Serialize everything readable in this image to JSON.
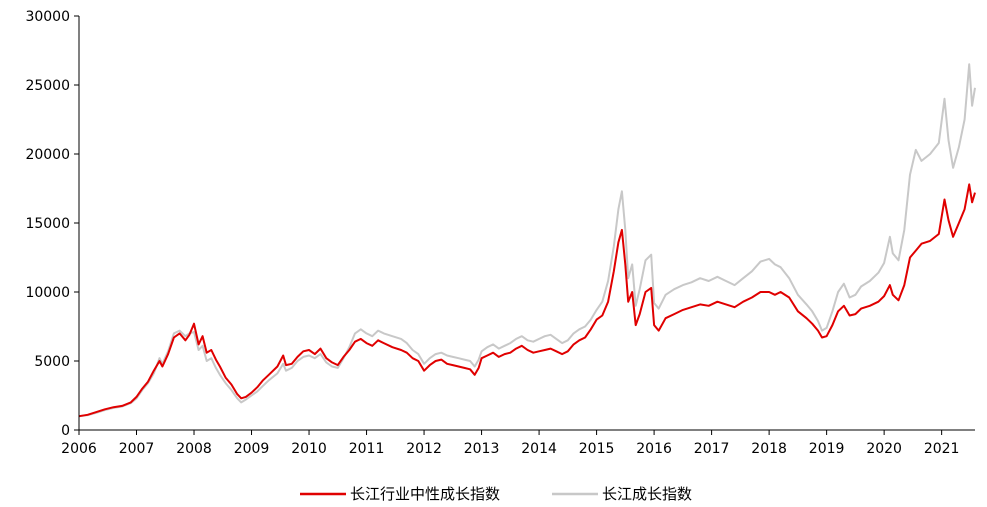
{
  "chart_data": {
    "type": "line",
    "title": "",
    "xlabel": "",
    "ylabel": "",
    "xlim": [
      2006,
      2021.58
    ],
    "ylim": [
      0,
      30000
    ],
    "x_ticks": [
      "2006",
      "2007",
      "2008",
      "2009",
      "2010",
      "2011",
      "2012",
      "2013",
      "2014",
      "2015",
      "2016",
      "2017",
      "2018",
      "2019",
      "2020",
      "2021"
    ],
    "y_ticks": [
      "0",
      "5000",
      "10000",
      "15000",
      "20000",
      "25000",
      "30000"
    ],
    "grid": false,
    "legend_position": "bottom",
    "series": [
      {
        "name": "长江行业中性成长指数",
        "color": "#e00000",
        "points": [
          [
            2006.0,
            1000
          ],
          [
            2006.15,
            1100
          ],
          [
            2006.3,
            1300
          ],
          [
            2006.45,
            1500
          ],
          [
            2006.6,
            1650
          ],
          [
            2006.75,
            1750
          ],
          [
            2006.9,
            2000
          ],
          [
            2007.0,
            2400
          ],
          [
            2007.1,
            3000
          ],
          [
            2007.2,
            3500
          ],
          [
            2007.3,
            4300
          ],
          [
            2007.4,
            5000
          ],
          [
            2007.45,
            4600
          ],
          [
            2007.55,
            5500
          ],
          [
            2007.65,
            6700
          ],
          [
            2007.75,
            7000
          ],
          [
            2007.85,
            6500
          ],
          [
            2007.92,
            6900
          ],
          [
            2008.0,
            7700
          ],
          [
            2008.08,
            6200
          ],
          [
            2008.15,
            6800
          ],
          [
            2008.22,
            5600
          ],
          [
            2008.3,
            5800
          ],
          [
            2008.38,
            5100
          ],
          [
            2008.45,
            4600
          ],
          [
            2008.55,
            3800
          ],
          [
            2008.65,
            3300
          ],
          [
            2008.75,
            2600
          ],
          [
            2008.82,
            2300
          ],
          [
            2008.9,
            2400
          ],
          [
            2009.0,
            2700
          ],
          [
            2009.1,
            3100
          ],
          [
            2009.2,
            3600
          ],
          [
            2009.3,
            4000
          ],
          [
            2009.45,
            4600
          ],
          [
            2009.55,
            5400
          ],
          [
            2009.6,
            4700
          ],
          [
            2009.7,
            4800
          ],
          [
            2009.8,
            5300
          ],
          [
            2009.9,
            5700
          ],
          [
            2010.0,
            5800
          ],
          [
            2010.1,
            5500
          ],
          [
            2010.2,
            5900
          ],
          [
            2010.3,
            5200
          ],
          [
            2010.4,
            4900
          ],
          [
            2010.5,
            4700
          ],
          [
            2010.6,
            5300
          ],
          [
            2010.7,
            5800
          ],
          [
            2010.8,
            6400
          ],
          [
            2010.9,
            6600
          ],
          [
            2011.0,
            6300
          ],
          [
            2011.1,
            6100
          ],
          [
            2011.2,
            6500
          ],
          [
            2011.3,
            6300
          ],
          [
            2011.45,
            6000
          ],
          [
            2011.6,
            5800
          ],
          [
            2011.7,
            5600
          ],
          [
            2011.8,
            5200
          ],
          [
            2011.9,
            5000
          ],
          [
            2012.0,
            4300
          ],
          [
            2012.1,
            4700
          ],
          [
            2012.2,
            5000
          ],
          [
            2012.3,
            5100
          ],
          [
            2012.4,
            4800
          ],
          [
            2012.5,
            4700
          ],
          [
            2012.6,
            4600
          ],
          [
            2012.7,
            4500
          ],
          [
            2012.8,
            4400
          ],
          [
            2012.88,
            4000
          ],
          [
            2012.95,
            4500
          ],
          [
            2013.0,
            5200
          ],
          [
            2013.1,
            5400
          ],
          [
            2013.2,
            5600
          ],
          [
            2013.3,
            5300
          ],
          [
            2013.4,
            5500
          ],
          [
            2013.5,
            5600
          ],
          [
            2013.6,
            5900
          ],
          [
            2013.7,
            6100
          ],
          [
            2013.8,
            5800
          ],
          [
            2013.9,
            5600
          ],
          [
            2014.0,
            5700
          ],
          [
            2014.1,
            5800
          ],
          [
            2014.2,
            5900
          ],
          [
            2014.3,
            5700
          ],
          [
            2014.4,
            5500
          ],
          [
            2014.5,
            5700
          ],
          [
            2014.6,
            6200
          ],
          [
            2014.7,
            6500
          ],
          [
            2014.8,
            6700
          ],
          [
            2014.9,
            7300
          ],
          [
            2015.0,
            8000
          ],
          [
            2015.1,
            8300
          ],
          [
            2015.2,
            9300
          ],
          [
            2015.3,
            11500
          ],
          [
            2015.38,
            13600
          ],
          [
            2015.44,
            14500
          ],
          [
            2015.5,
            12000
          ],
          [
            2015.55,
            9300
          ],
          [
            2015.62,
            10000
          ],
          [
            2015.68,
            7600
          ],
          [
            2015.75,
            8400
          ],
          [
            2015.85,
            10000
          ],
          [
            2015.95,
            10300
          ],
          [
            2016.0,
            7600
          ],
          [
            2016.08,
            7200
          ],
          [
            2016.2,
            8100
          ],
          [
            2016.35,
            8400
          ],
          [
            2016.5,
            8700
          ],
          [
            2016.65,
            8900
          ],
          [
            2016.8,
            9100
          ],
          [
            2016.95,
            9000
          ],
          [
            2017.1,
            9300
          ],
          [
            2017.25,
            9100
          ],
          [
            2017.4,
            8900
          ],
          [
            2017.55,
            9300
          ],
          [
            2017.7,
            9600
          ],
          [
            2017.85,
            10000
          ],
          [
            2018.0,
            10000
          ],
          [
            2018.1,
            9800
          ],
          [
            2018.2,
            10000
          ],
          [
            2018.35,
            9600
          ],
          [
            2018.5,
            8600
          ],
          [
            2018.65,
            8100
          ],
          [
            2018.75,
            7700
          ],
          [
            2018.85,
            7200
          ],
          [
            2018.92,
            6700
          ],
          [
            2019.0,
            6800
          ],
          [
            2019.1,
            7600
          ],
          [
            2019.2,
            8600
          ],
          [
            2019.3,
            9000
          ],
          [
            2019.4,
            8300
          ],
          [
            2019.5,
            8400
          ],
          [
            2019.6,
            8800
          ],
          [
            2019.75,
            9000
          ],
          [
            2019.9,
            9300
          ],
          [
            2020.0,
            9700
          ],
          [
            2020.1,
            10500
          ],
          [
            2020.15,
            9800
          ],
          [
            2020.25,
            9400
          ],
          [
            2020.35,
            10500
          ],
          [
            2020.45,
            12500
          ],
          [
            2020.55,
            13000
          ],
          [
            2020.65,
            13500
          ],
          [
            2020.8,
            13700
          ],
          [
            2020.95,
            14200
          ],
          [
            2021.05,
            16700
          ],
          [
            2021.12,
            15200
          ],
          [
            2021.2,
            14000
          ],
          [
            2021.3,
            15000
          ],
          [
            2021.4,
            16000
          ],
          [
            2021.48,
            17800
          ],
          [
            2021.53,
            16500
          ],
          [
            2021.58,
            17200
          ]
        ]
      },
      {
        "name": "长江成长指数",
        "color": "#c8c8c8",
        "points": [
          [
            2006.0,
            1000
          ],
          [
            2006.15,
            1080
          ],
          [
            2006.3,
            1250
          ],
          [
            2006.45,
            1450
          ],
          [
            2006.6,
            1600
          ],
          [
            2006.75,
            1700
          ],
          [
            2006.9,
            1950
          ],
          [
            2007.0,
            2300
          ],
          [
            2007.1,
            2900
          ],
          [
            2007.2,
            3400
          ],
          [
            2007.3,
            4100
          ],
          [
            2007.4,
            5200
          ],
          [
            2007.45,
            4800
          ],
          [
            2007.55,
            5700
          ],
          [
            2007.65,
            7000
          ],
          [
            2007.75,
            7200
          ],
          [
            2007.85,
            6800
          ],
          [
            2007.92,
            7000
          ],
          [
            2008.0,
            7100
          ],
          [
            2008.08,
            5800
          ],
          [
            2008.15,
            6100
          ],
          [
            2008.22,
            5000
          ],
          [
            2008.3,
            5200
          ],
          [
            2008.38,
            4500
          ],
          [
            2008.45,
            4000
          ],
          [
            2008.55,
            3400
          ],
          [
            2008.65,
            2900
          ],
          [
            2008.75,
            2300
          ],
          [
            2008.82,
            2000
          ],
          [
            2008.9,
            2200
          ],
          [
            2009.0,
            2500
          ],
          [
            2009.1,
            2800
          ],
          [
            2009.2,
            3200
          ],
          [
            2009.3,
            3600
          ],
          [
            2009.45,
            4100
          ],
          [
            2009.55,
            4800
          ],
          [
            2009.6,
            4300
          ],
          [
            2009.7,
            4500
          ],
          [
            2009.8,
            5000
          ],
          [
            2009.9,
            5300
          ],
          [
            2010.0,
            5400
          ],
          [
            2010.1,
            5200
          ],
          [
            2010.2,
            5500
          ],
          [
            2010.3,
            4900
          ],
          [
            2010.4,
            4600
          ],
          [
            2010.5,
            4500
          ],
          [
            2010.6,
            5200
          ],
          [
            2010.7,
            6000
          ],
          [
            2010.8,
            7000
          ],
          [
            2010.9,
            7300
          ],
          [
            2011.0,
            7000
          ],
          [
            2011.1,
            6800
          ],
          [
            2011.2,
            7200
          ],
          [
            2011.3,
            7000
          ],
          [
            2011.45,
            6800
          ],
          [
            2011.6,
            6600
          ],
          [
            2011.7,
            6300
          ],
          [
            2011.8,
            5800
          ],
          [
            2011.9,
            5500
          ],
          [
            2012.0,
            4800
          ],
          [
            2012.1,
            5200
          ],
          [
            2012.2,
            5500
          ],
          [
            2012.3,
            5600
          ],
          [
            2012.4,
            5400
          ],
          [
            2012.5,
            5300
          ],
          [
            2012.6,
            5200
          ],
          [
            2012.7,
            5100
          ],
          [
            2012.8,
            5000
          ],
          [
            2012.88,
            4600
          ],
          [
            2012.95,
            5100
          ],
          [
            2013.0,
            5700
          ],
          [
            2013.1,
            6000
          ],
          [
            2013.2,
            6200
          ],
          [
            2013.3,
            5900
          ],
          [
            2013.4,
            6100
          ],
          [
            2013.5,
            6300
          ],
          [
            2013.6,
            6600
          ],
          [
            2013.7,
            6800
          ],
          [
            2013.8,
            6500
          ],
          [
            2013.9,
            6400
          ],
          [
            2014.0,
            6600
          ],
          [
            2014.1,
            6800
          ],
          [
            2014.2,
            6900
          ],
          [
            2014.3,
            6600
          ],
          [
            2014.4,
            6300
          ],
          [
            2014.5,
            6500
          ],
          [
            2014.6,
            7000
          ],
          [
            2014.7,
            7300
          ],
          [
            2014.8,
            7500
          ],
          [
            2014.9,
            8000
          ],
          [
            2015.0,
            8700
          ],
          [
            2015.1,
            9300
          ],
          [
            2015.2,
            10800
          ],
          [
            2015.3,
            13300
          ],
          [
            2015.38,
            16000
          ],
          [
            2015.44,
            17300
          ],
          [
            2015.5,
            14500
          ],
          [
            2015.55,
            11000
          ],
          [
            2015.62,
            12000
          ],
          [
            2015.68,
            9000
          ],
          [
            2015.75,
            10200
          ],
          [
            2015.85,
            12300
          ],
          [
            2015.95,
            12700
          ],
          [
            2016.0,
            9200
          ],
          [
            2016.08,
            8800
          ],
          [
            2016.2,
            9800
          ],
          [
            2016.35,
            10200
          ],
          [
            2016.5,
            10500
          ],
          [
            2016.65,
            10700
          ],
          [
            2016.8,
            11000
          ],
          [
            2016.95,
            10800
          ],
          [
            2017.1,
            11100
          ],
          [
            2017.25,
            10800
          ],
          [
            2017.4,
            10500
          ],
          [
            2017.55,
            11000
          ],
          [
            2017.7,
            11500
          ],
          [
            2017.85,
            12200
          ],
          [
            2018.0,
            12400
          ],
          [
            2018.1,
            12000
          ],
          [
            2018.2,
            11800
          ],
          [
            2018.35,
            11000
          ],
          [
            2018.5,
            9800
          ],
          [
            2018.65,
            9100
          ],
          [
            2018.75,
            8600
          ],
          [
            2018.85,
            7900
          ],
          [
            2018.92,
            7200
          ],
          [
            2019.0,
            7400
          ],
          [
            2019.1,
            8600
          ],
          [
            2019.2,
            10000
          ],
          [
            2019.3,
            10600
          ],
          [
            2019.4,
            9600
          ],
          [
            2019.5,
            9800
          ],
          [
            2019.6,
            10400
          ],
          [
            2019.75,
            10800
          ],
          [
            2019.9,
            11400
          ],
          [
            2020.0,
            12100
          ],
          [
            2020.1,
            14000
          ],
          [
            2020.15,
            12800
          ],
          [
            2020.25,
            12300
          ],
          [
            2020.35,
            14500
          ],
          [
            2020.45,
            18500
          ],
          [
            2020.55,
            20300
          ],
          [
            2020.65,
            19500
          ],
          [
            2020.8,
            20000
          ],
          [
            2020.95,
            20800
          ],
          [
            2021.05,
            24000
          ],
          [
            2021.12,
            21000
          ],
          [
            2021.2,
            19000
          ],
          [
            2021.3,
            20500
          ],
          [
            2021.4,
            22500
          ],
          [
            2021.48,
            26500
          ],
          [
            2021.53,
            23500
          ],
          [
            2021.58,
            24800
          ]
        ]
      }
    ]
  }
}
